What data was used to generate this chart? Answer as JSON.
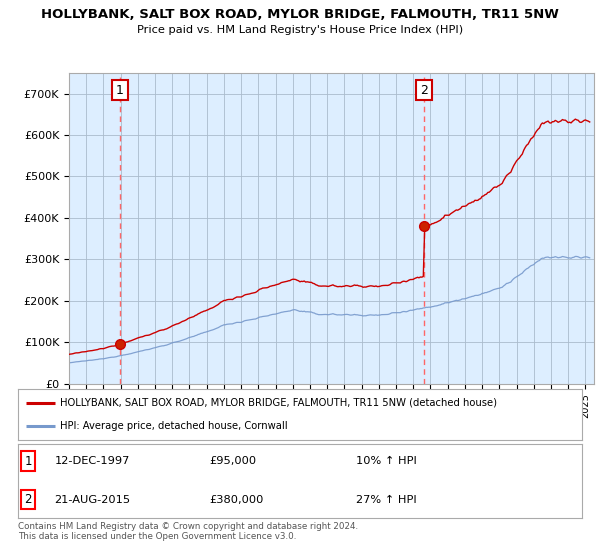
{
  "title": "HOLLYBANK, SALT BOX ROAD, MYLOR BRIDGE, FALMOUTH, TR11 5NW",
  "subtitle": "Price paid vs. HM Land Registry's House Price Index (HPI)",
  "background_color": "#ffffff",
  "plot_bg_color": "#ddeeff",
  "grid_color": "#aabbcc",
  "sale1_t": 1997.958,
  "sale1_price": 95000,
  "sale2_t": 2015.625,
  "sale2_price": 380000,
  "red_line_color": "#cc0000",
  "blue_line_color": "#7799cc",
  "vline_color": "#ff6666",
  "legend_label_red": "HOLLYBANK, SALT BOX ROAD, MYLOR BRIDGE, FALMOUTH, TR11 5NW (detached house)",
  "legend_label_blue": "HPI: Average price, detached house, Cornwall",
  "ylim_max": 750000,
  "yticks": [
    0,
    100000,
    200000,
    300000,
    400000,
    500000,
    600000,
    700000
  ],
  "ytick_labels": [
    "£0",
    "£100K",
    "£200K",
    "£300K",
    "£400K",
    "£500K",
    "£600K",
    "£700K"
  ],
  "xmin": 1995.0,
  "xmax": 2025.5,
  "footer": "Contains HM Land Registry data © Crown copyright and database right 2024.\nThis data is licensed under the Open Government Licence v3.0."
}
